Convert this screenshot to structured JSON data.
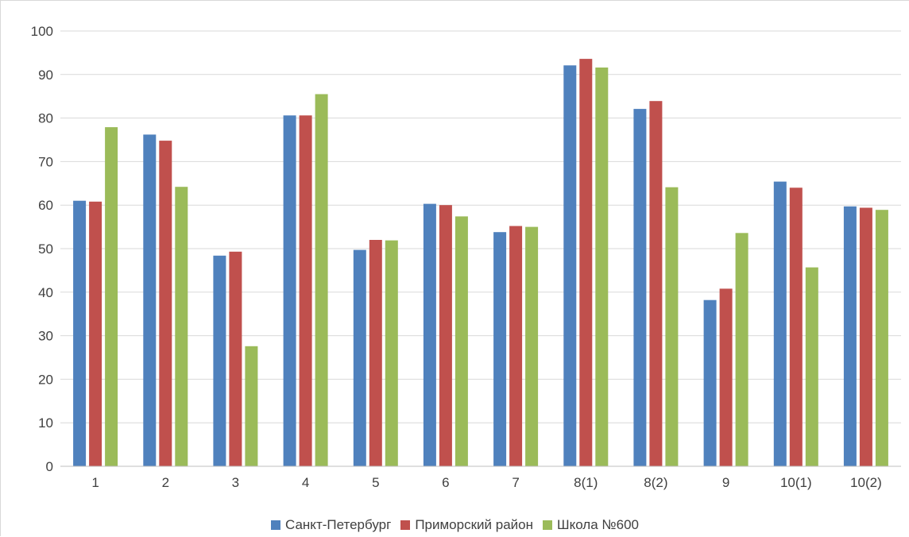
{
  "chart_data": {
    "type": "bar",
    "categories": [
      "1",
      "2",
      "3",
      "4",
      "5",
      "6",
      "7",
      "8(1)",
      "8(2)",
      "9",
      "10(1)",
      "10(2)"
    ],
    "series": [
      {
        "name": "Санкт-Петербург",
        "color": "#4f81bd",
        "values": [
          61,
          76.2,
          48.4,
          80.6,
          49.7,
          60.3,
          53.8,
          92.1,
          82.1,
          38.2,
          65.4,
          59.7
        ]
      },
      {
        "name": "Приморский район",
        "color": "#c0504d",
        "values": [
          60.8,
          74.8,
          49.3,
          80.6,
          52,
          60,
          55.2,
          93.6,
          83.9,
          40.8,
          64,
          59.4
        ]
      },
      {
        "name": "Школа №600",
        "color": "#9bbb59",
        "values": [
          77.9,
          64.2,
          27.6,
          85.5,
          51.9,
          57.4,
          55,
          91.6,
          64.1,
          53.6,
          45.7,
          58.9
        ]
      }
    ],
    "y_ticks": [
      "0",
      "10",
      "20",
      "30",
      "40",
      "50",
      "60",
      "70",
      "80",
      "90",
      "100"
    ],
    "ylim": [
      0,
      100
    ],
    "grid": true,
    "legend_position": "bottom"
  }
}
